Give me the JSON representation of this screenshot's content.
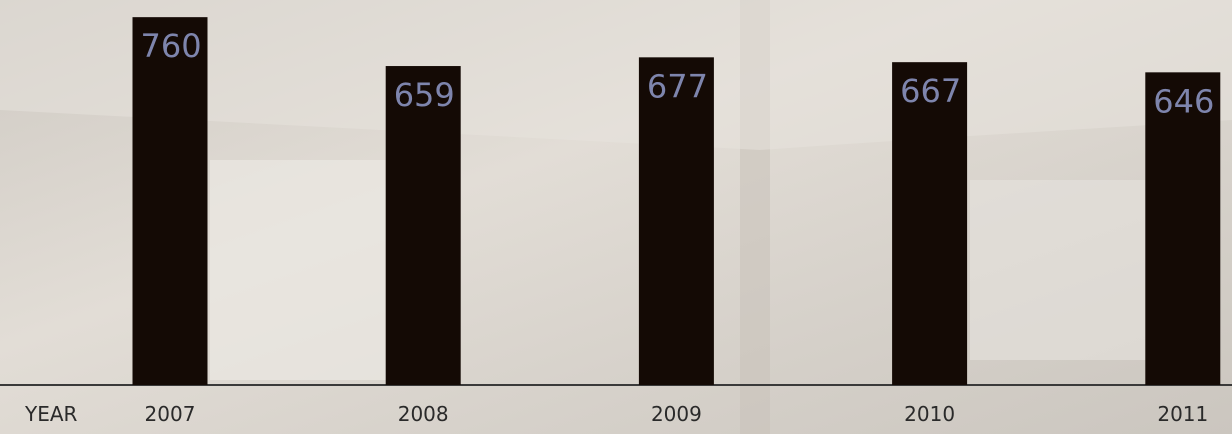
{
  "chart_data": {
    "type": "bar",
    "x_label": "YEAR",
    "categories": [
      "2007",
      "2008",
      "2009",
      "2010",
      "2011"
    ],
    "values": [
      760,
      659,
      677,
      667,
      646
    ],
    "color": "#140a05"
  }
}
